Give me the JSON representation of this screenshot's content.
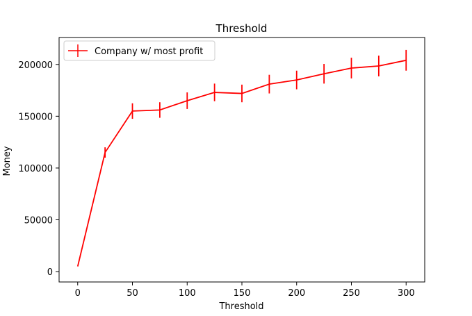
{
  "chart_data": {
    "type": "line",
    "title": "Threshold",
    "xlabel": "Threshold",
    "ylabel": "Money",
    "xlim": [
      -17,
      317
    ],
    "ylim": [
      -10000,
      226000
    ],
    "x_ticks": [
      0,
      50,
      100,
      150,
      200,
      250,
      300
    ],
    "y_ticks": [
      0,
      50000,
      100000,
      150000,
      200000
    ],
    "grid": false,
    "legend_position": "upper-left",
    "series": [
      {
        "name": "Company w/ most profit",
        "color": "#ff0000",
        "x": [
          0,
          25,
          50,
          75,
          100,
          125,
          150,
          175,
          200,
          225,
          250,
          275,
          300
        ],
        "y": [
          5000,
          115000,
          155000,
          156000,
          165000,
          173000,
          172000,
          181000,
          185000,
          191000,
          196500,
          198500,
          204000
        ],
        "error": [
          0,
          5000,
          7500,
          7500,
          8000,
          8500,
          8500,
          9000,
          9000,
          9500,
          10000,
          10000,
          10000
        ]
      }
    ]
  }
}
